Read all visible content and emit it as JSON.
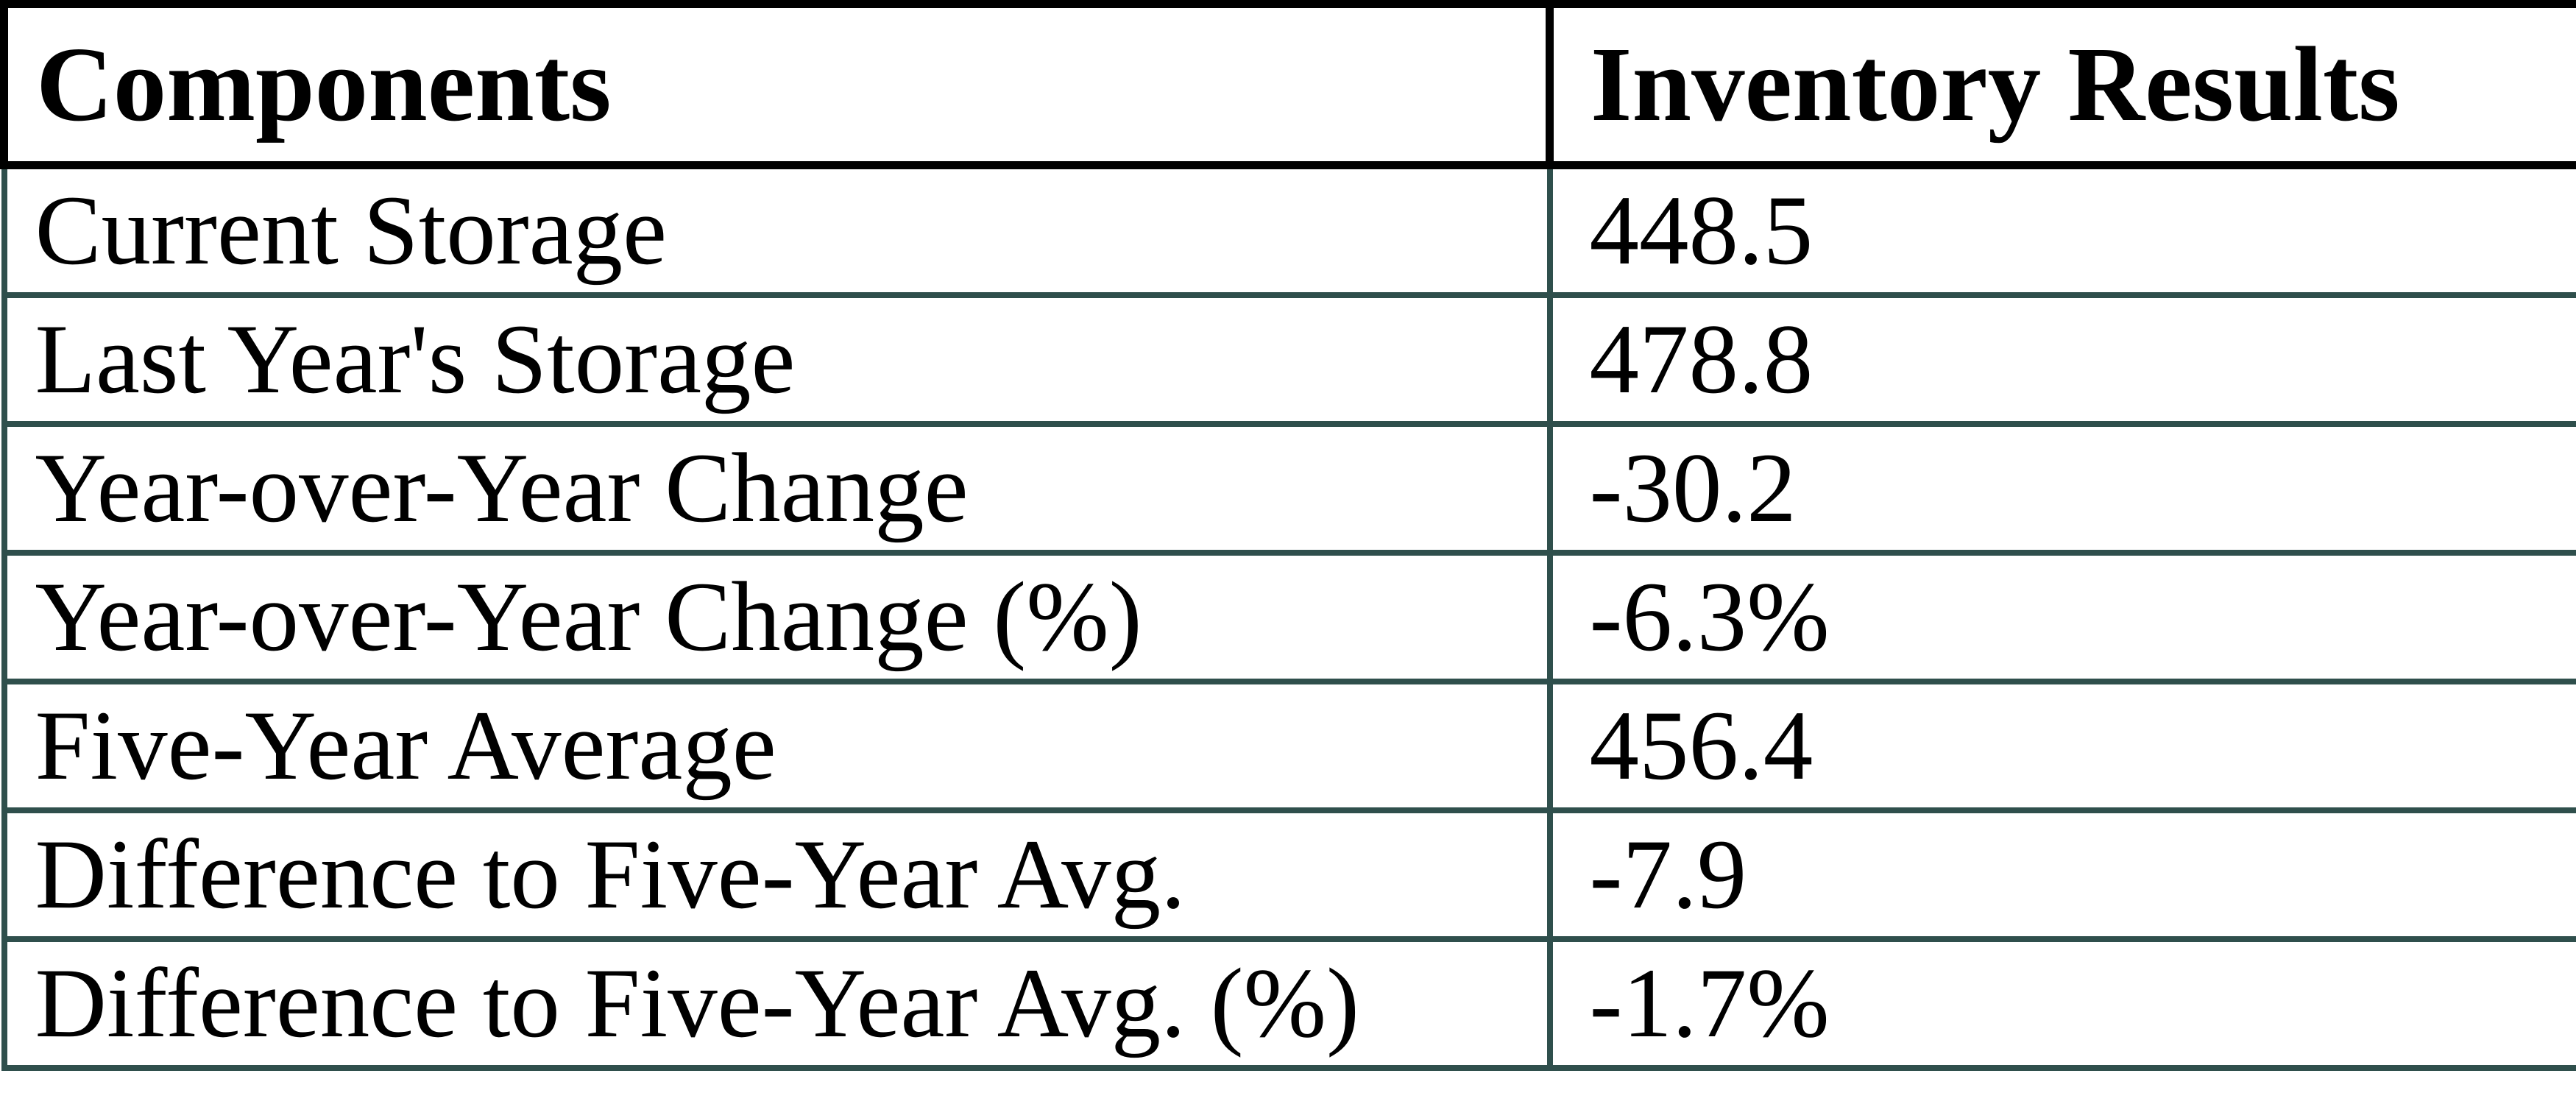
{
  "chart_data": {
    "type": "table",
    "title": "",
    "columns": [
      "Components",
      "Inventory Results"
    ],
    "rows": [
      [
        "Current Storage",
        "448.5"
      ],
      [
        "Last Year's Storage",
        "478.8"
      ],
      [
        "Year-over-Year Change",
        "-30.2"
      ],
      [
        "Year-over-Year Change (%)",
        "-6.3%"
      ],
      [
        "Five-Year Average",
        "456.4"
      ],
      [
        "Difference to Five-Year Avg.",
        "-7.9"
      ],
      [
        "Difference to Five-Year Avg. (%)",
        "-1.7%"
      ]
    ],
    "layout": {
      "header_border_color": "#000000",
      "body_border_color": "#2F4F4C",
      "text_color": "#000000",
      "background_color": "#FFFFFF",
      "grid": "on"
    }
  }
}
